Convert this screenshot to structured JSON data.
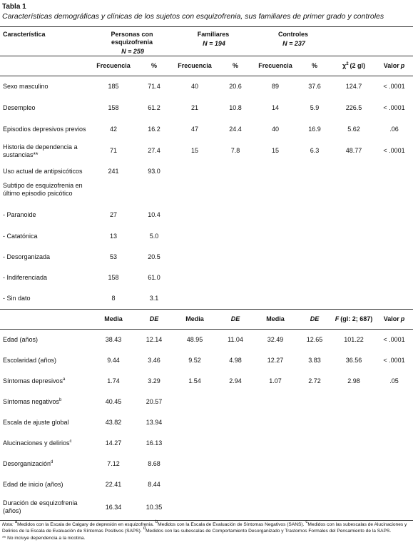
{
  "title": "Tabla 1",
  "caption": "Características demográficas y clínicas de los sujetos con esquizofrenia, sus familiares de primer grado y controles",
  "header": {
    "characteristic": "Característica",
    "groups": [
      {
        "name": "Personas con esquizofrenia",
        "n": "N = 259"
      },
      {
        "name": "Familiares",
        "n": "N = 194"
      },
      {
        "name": "Controles",
        "n": "N = 237"
      }
    ],
    "columns": [
      "Frecuencia",
      "%",
      "Frecuencia",
      "%",
      "Frecuencia",
      "%",
      [
        {
          "text": "χ"
        },
        {
          "sup": "2"
        },
        {
          "text": "(2 gl)"
        }
      ],
      [
        {
          "text": "Valor"
        },
        {
          "italic": "p"
        }
      ]
    ]
  },
  "section1": [
    {
      "label": "Sexo masculino",
      "cells": [
        "185",
        "71.4",
        "40",
        "20.6",
        "89",
        "37.6",
        "124.7",
        "< .0001"
      ]
    },
    {
      "label": "Desempleo",
      "cells": [
        "158",
        "61.2",
        "21",
        "10.8",
        "14",
        "5.9",
        "226.5",
        "< .0001"
      ]
    },
    {
      "label": "Episodios depresivos previos",
      "cells": [
        "42",
        "16.2",
        "47",
        "24.4",
        "40",
        "16.9",
        "5.62",
        ".06"
      ]
    },
    {
      "label": "Historia de dependencia a sustancias**",
      "cells": [
        "71",
        "27.4",
        "15",
        "7.8",
        "15",
        "6.3",
        "48.77",
        "< .0001"
      ]
    },
    {
      "label": "Uso actual de antipsicóticos",
      "cells": [
        "241",
        "93.0"
      ]
    },
    {
      "label": "Subtipo de esquizofrenia en último episodio psicótico",
      "cells": []
    },
    {
      "label": "- Paranoide",
      "cells": [
        "27",
        "10.4"
      ]
    },
    {
      "label": "- Catatónica",
      "cells": [
        "13",
        "5.0"
      ]
    },
    {
      "label": "- Desorganizada",
      "cells": [
        "53",
        "20.5"
      ]
    },
    {
      "label": "- Indiferenciada",
      "cells": [
        "158",
        "61.0"
      ]
    },
    {
      "label": "- Sin dato",
      "cells": [
        "8",
        "3.1"
      ]
    }
  ],
  "section2_columns": [
    "Media",
    [
      {
        "italic": "DE"
      }
    ],
    "Media",
    [
      {
        "italic": "DE"
      }
    ],
    "Media",
    [
      {
        "italic": "DE"
      }
    ],
    [
      {
        "italic": "F"
      },
      {
        "text": "(gl: 2; 687)"
      }
    ],
    [
      {
        "text": "Valor"
      },
      {
        "italic": "p"
      }
    ]
  ],
  "section2": [
    {
      "label": "Edad (años)",
      "cells": [
        "38.43",
        "12.14",
        "48.95",
        "11.04",
        "32.49",
        "12.65",
        "101.22",
        "< .0001"
      ]
    },
    {
      "label": "Escolaridad (años)",
      "cells": [
        "9.44",
        "3.46",
        "9.52",
        "4.98",
        "12.27",
        "3.83",
        "36.56",
        "< .0001"
      ]
    },
    {
      "label": "Síntomas depresivos",
      "sup": "a",
      "cells": [
        "1.74",
        "3.29",
        "1.54",
        "2.94",
        "1.07",
        "2.72",
        "2.98",
        ".05"
      ]
    },
    {
      "label": "Síntomas negativos",
      "sup": "b",
      "cells": [
        "40.45",
        "20.57"
      ]
    },
    {
      "label": "Escala de ajuste global",
      "cells": [
        "43.82",
        "13.94"
      ]
    },
    {
      "label": "Alucinaciones y delirios",
      "sup": "c",
      "cells": [
        "14.27",
        "16.13"
      ]
    },
    {
      "label": "Desorganización",
      "sup": "d",
      "cells": [
        "7.12",
        "8.68"
      ]
    },
    {
      "label": "Edad de inicio (años)",
      "cells": [
        "22.41",
        "8.44"
      ]
    },
    {
      "label": "Duración de esquizofrenia (años)",
      "cells": [
        "16.34",
        "10.35"
      ]
    }
  ],
  "note": {
    "lead": "Nota:",
    "items": [
      {
        "sup": "a",
        "text": "Medidos con la Escala de Calgary de depresión en esquizofrenia."
      },
      {
        "sup": "b",
        "text": "Medidos con la Escala de Evaluación de Síntomas Negativos (SANS)."
      },
      {
        "sup": "c",
        "text": "Medidos con las subescalas de Alucinaciones y Delirios de la Escala de Evaluación de Síntomas Positivos (SAPS)."
      },
      {
        "sup": "d",
        "text": "Medidos con las subescalas de Comportamiento Desorganizado y Trastornos Formales del Pensamiento de la SAPS."
      }
    ],
    "footnote": {
      "mark": "**",
      "text": "No incluye dependencia a la nicotina."
    }
  }
}
